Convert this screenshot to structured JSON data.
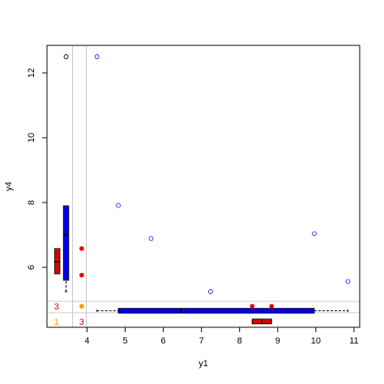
{
  "chart_data": {
    "type": "scatter",
    "title": "",
    "xlabel": "y1",
    "ylabel": "y4",
    "xlim": [
      2.95,
      11.15
    ],
    "ylim": [
      4.15,
      12.85
    ],
    "x_ticks": [
      "4",
      "5",
      "6",
      "7",
      "8",
      "9",
      "10",
      "11"
    ],
    "y_ticks": [
      "6",
      "8",
      "10",
      "12"
    ],
    "grid": false,
    "colors": {
      "scatter_open": "#2222ee",
      "scatter_filled": "#ee0000",
      "box_blue": "#0000ee",
      "box_red": "#dd0000",
      "count_orange": "#ff9900",
      "count_red": "#dd0000",
      "divider": "#c8c8c8"
    },
    "series": [
      {
        "marker": "open-circle",
        "color": "#2222ee",
        "points": [
          [
            4.26,
            12.5
          ],
          [
            4.82,
            7.91
          ],
          [
            5.68,
            6.89
          ],
          [
            7.24,
            5.25
          ],
          [
            9.96,
            7.04
          ],
          [
            10.84,
            5.56
          ]
        ]
      },
      {
        "marker": "filled-circle",
        "color": "#ee0000",
        "points": [
          [
            3.86,
            6.58
          ],
          [
            3.86,
            5.76
          ],
          [
            8.33,
            4.8
          ],
          [
            8.84,
            4.8
          ]
        ]
      },
      {
        "marker": "filled-circle",
        "color": "#ff9900",
        "points": [
          [
            3.86,
            4.8
          ]
        ]
      },
      {
        "marker": "open-circle",
        "color": "#000000",
        "points": [
          [
            3.45,
            12.5
          ]
        ]
      }
    ],
    "marginal_boxplots": {
      "y_axis": [
        {
          "color": "#0000ee",
          "q1": 5.6,
          "median": 7.0,
          "q3": 7.9,
          "whisker_low": 5.25,
          "whisker_high": 7.9,
          "position_x": 3.45,
          "width_x": 0.14
        },
        {
          "color": "#dd0000",
          "q1": 5.8,
          "median": 6.17,
          "q3": 6.58,
          "whisker_low": 5.8,
          "whisker_high": 6.58,
          "position_x": 3.22,
          "width_x": 0.14
        }
      ],
      "x_axis": [
        {
          "color": "#0000ee",
          "q1": 4.82,
          "median": 6.46,
          "q3": 9.96,
          "whisker_low": 4.26,
          "whisker_high": 10.84,
          "position_y": 4.66,
          "width_y": 0.15
        },
        {
          "color": "#dd0000",
          "q1": 8.33,
          "median": 8.58,
          "q3": 8.84,
          "whisker_low": 8.33,
          "whisker_high": 8.84,
          "position_y": 4.33,
          "width_y": 0.15
        }
      ]
    },
    "dividers": {
      "x": [
        3.62,
        3.98
      ],
      "y": [
        4.95,
        4.6
      ]
    },
    "counts": [
      {
        "text": "3",
        "x": 3.2,
        "y": 4.8,
        "color": "#dd0000"
      },
      {
        "text": "1",
        "x": 3.2,
        "y": 4.33,
        "color": "#ff9900"
      },
      {
        "text": "3",
        "x": 3.86,
        "y": 4.33,
        "color": "#dd0000"
      }
    ]
  }
}
